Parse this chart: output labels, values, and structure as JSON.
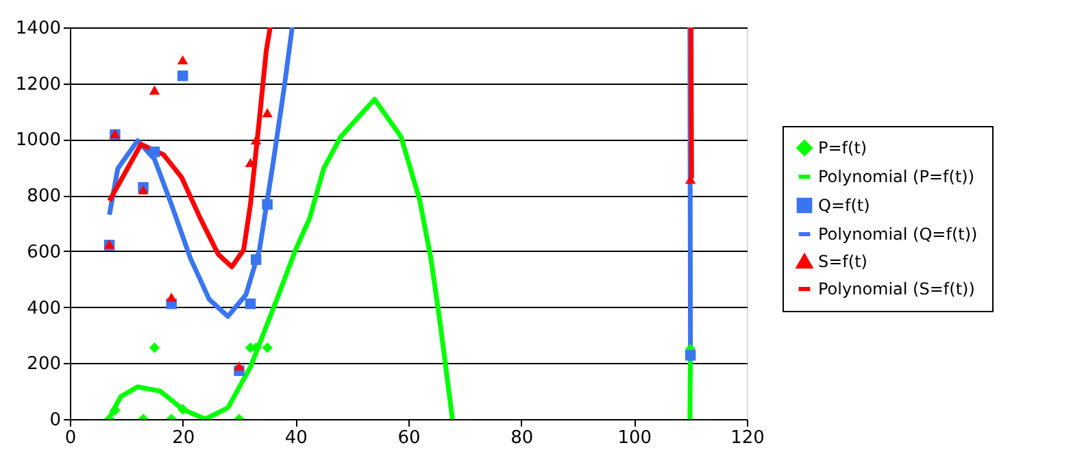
{
  "chart_data": {
    "type": "scatter",
    "xlim": [
      0,
      120
    ],
    "xticks": [
      0,
      20,
      40,
      60,
      80,
      100,
      120
    ],
    "ylim": [
      0,
      1400
    ],
    "yticks": [
      0,
      200,
      400,
      600,
      800,
      1000,
      1200,
      1400
    ],
    "grid": "y",
    "legend": "right",
    "series": [
      {
        "name": "P=f(t)",
        "marker": "diamond",
        "color": "#00ff00",
        "x": [
          7,
          8,
          13,
          15,
          18,
          20,
          30,
          32,
          33,
          35,
          110
        ],
        "values": [
          0,
          32,
          0,
          255,
          0,
          35,
          0,
          255,
          255,
          255,
          250
        ]
      },
      {
        "name": "Polynomial (P=f(t))",
        "type": "line",
        "color": "#00ff00",
        "x": [
          7,
          9,
          12,
          16,
          20,
          24,
          28,
          32,
          37,
          40,
          42.5,
          45,
          48,
          54,
          58.7,
          62,
          64,
          65.6,
          67.8,
          80,
          109.9,
          110
        ],
        "values": [
          5,
          80,
          115,
          100,
          35,
          0,
          40,
          186,
          444,
          605,
          718,
          896,
          1009,
          1143,
          1009,
          783,
          573,
          347,
          0,
          null,
          0,
          250
        ]
      },
      {
        "name": "Q=f(t)",
        "marker": "square",
        "color": "#3a75f0",
        "x": [
          7,
          8,
          13,
          15,
          18,
          20,
          30,
          32,
          33,
          35,
          110
        ],
        "values": [
          622,
          1017,
          828,
          955,
          412,
          1227,
          173,
          412,
          570,
          767,
          228
        ]
      },
      {
        "name": "Polynomial (Q=f(t))",
        "type": "line",
        "color": "#3a75f0",
        "x": [
          7,
          8.5,
          12,
          15,
          18,
          21.4,
          24.7,
          28,
          31.2,
          33.6,
          36,
          38,
          39.4,
          80,
          109.9,
          110
        ],
        "values": [
          730,
          896,
          995,
          929,
          767,
          573,
          428,
          367,
          444,
          605,
          912,
          1187,
          1400,
          null,
          1400,
          220
        ]
      },
      {
        "name": "S=f(t)",
        "marker": "triangle",
        "color": "#ff0000",
        "x": [
          7,
          8,
          13,
          15,
          18,
          20,
          30,
          32,
          33,
          35,
          110
        ],
        "values": [
          625,
          1020,
          820,
          1176,
          436,
          1284,
          190,
          917,
          998,
          1095,
          857
        ]
      },
      {
        "name": "Polynomial (S=f(t))",
        "type": "line",
        "color": "#ff0000",
        "x": [
          7,
          12.6,
          16.6,
          19.8,
          23.1,
          26.3,
          28.7,
          30.8,
          32,
          33.6,
          34.8,
          35.5,
          80,
          110.1,
          110.2
        ],
        "values": [
          780,
          982,
          945,
          864,
          718,
          589,
          544,
          605,
          767,
          1074,
          1316,
          1400,
          null,
          1400,
          860
        ]
      }
    ]
  }
}
